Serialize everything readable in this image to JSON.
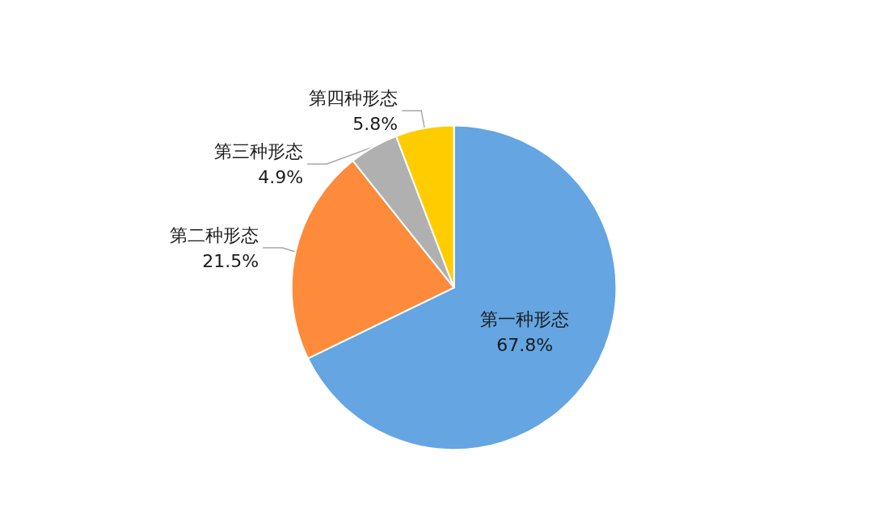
{
  "chart_data": {
    "type": "pie",
    "categories": [
      "第一种形态",
      "第二种形态",
      "第三种形态",
      "第四种形态"
    ],
    "values": [
      67.8,
      21.5,
      4.9,
      5.8
    ],
    "value_labels": [
      "67.8%",
      "21.5%",
      "4.9%",
      "5.8%"
    ],
    "colors": [
      "#64a5e2",
      "#fe8a3b",
      "#b0b0b0",
      "#ffcc00"
    ]
  }
}
